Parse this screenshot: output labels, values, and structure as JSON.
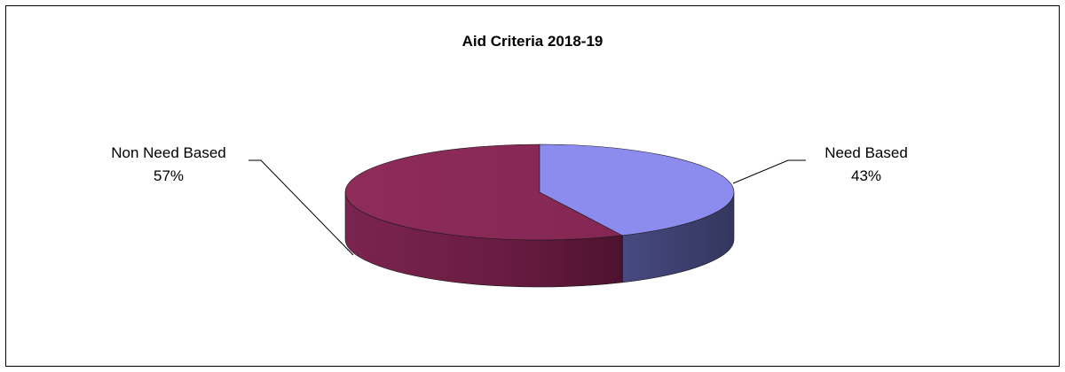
{
  "chart_data": {
    "type": "pie",
    "title": "Aid Criteria 2018-19",
    "three_d": true,
    "legend": "none",
    "slices": [
      {
        "label": "Need Based",
        "value": 43,
        "pct_label": "43%",
        "color": "#8C8CEE",
        "side_color": "#3C3E70"
      },
      {
        "label": "Non Need Based",
        "value": 57,
        "pct_label": "57%",
        "color": "#8B2A58",
        "side_color": "#6E1F44"
      }
    ]
  }
}
